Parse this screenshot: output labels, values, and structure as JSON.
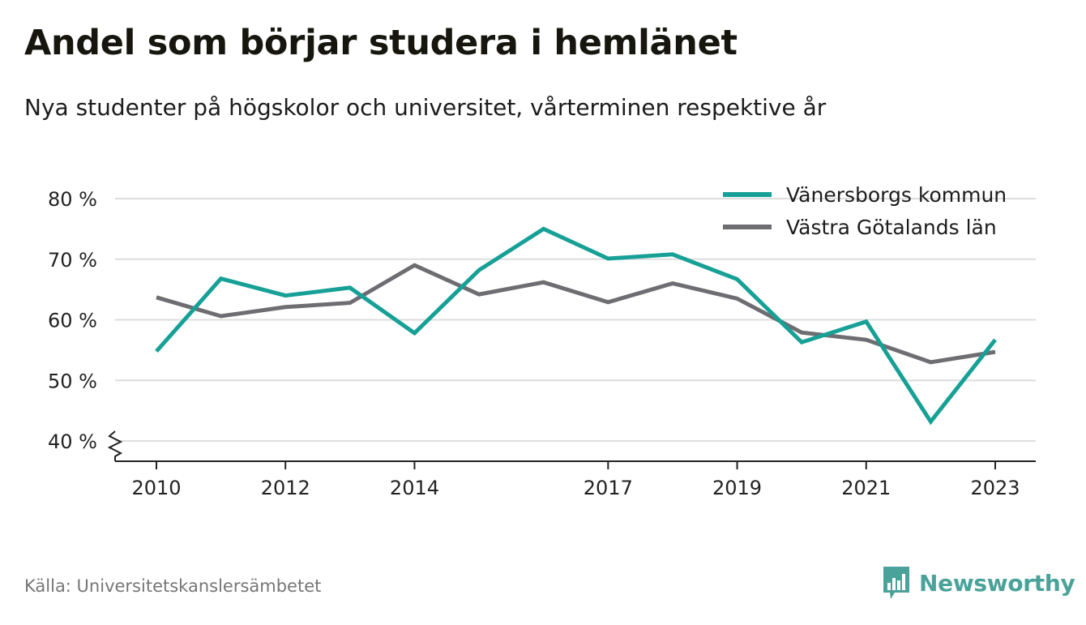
{
  "header": {
    "title": "Andel som börjar studera i hemlänet",
    "subtitle": "Nya studenter på högskolor och universitet, vårterminen respektive år"
  },
  "footer": {
    "source": "Källa: Universitetskanslersämbetet",
    "brand": "Newsworthy",
    "brand_icon": "bar-chart-speech-bubble-icon",
    "brand_color": "#4aa39a"
  },
  "chart_data": {
    "type": "line",
    "x": [
      2010,
      2011,
      2012,
      2013,
      2014,
      2015,
      2016,
      2017,
      2018,
      2019,
      2020,
      2021,
      2022,
      2023
    ],
    "x_tick_labels": [
      "2010",
      "2012",
      "2014",
      "2017",
      "2019",
      "2021",
      "2023"
    ],
    "y_tick_labels": [
      "40 %",
      "50 %",
      "60 %",
      "70 %",
      "80 %"
    ],
    "y_ticks": [
      40,
      50,
      60,
      70,
      80
    ],
    "ylim": [
      40,
      80
    ],
    "axis_break": true,
    "grid": "horizontal",
    "legend_position": "top-right",
    "series": [
      {
        "name": "Vänersborgs kommun",
        "color": "#16a096",
        "values": [
          54.8,
          66.8,
          64.0,
          65.3,
          57.8,
          68.2,
          75.0,
          70.1,
          70.8,
          66.7,
          56.3,
          59.7,
          43.2,
          56.7
        ]
      },
      {
        "name": "Västra Götalands län",
        "color": "#6e6d72",
        "values": [
          63.7,
          60.6,
          62.1,
          62.8,
          69.0,
          64.2,
          66.2,
          62.9,
          66.0,
          63.5,
          57.9,
          56.7,
          53.0,
          54.7
        ]
      }
    ]
  }
}
